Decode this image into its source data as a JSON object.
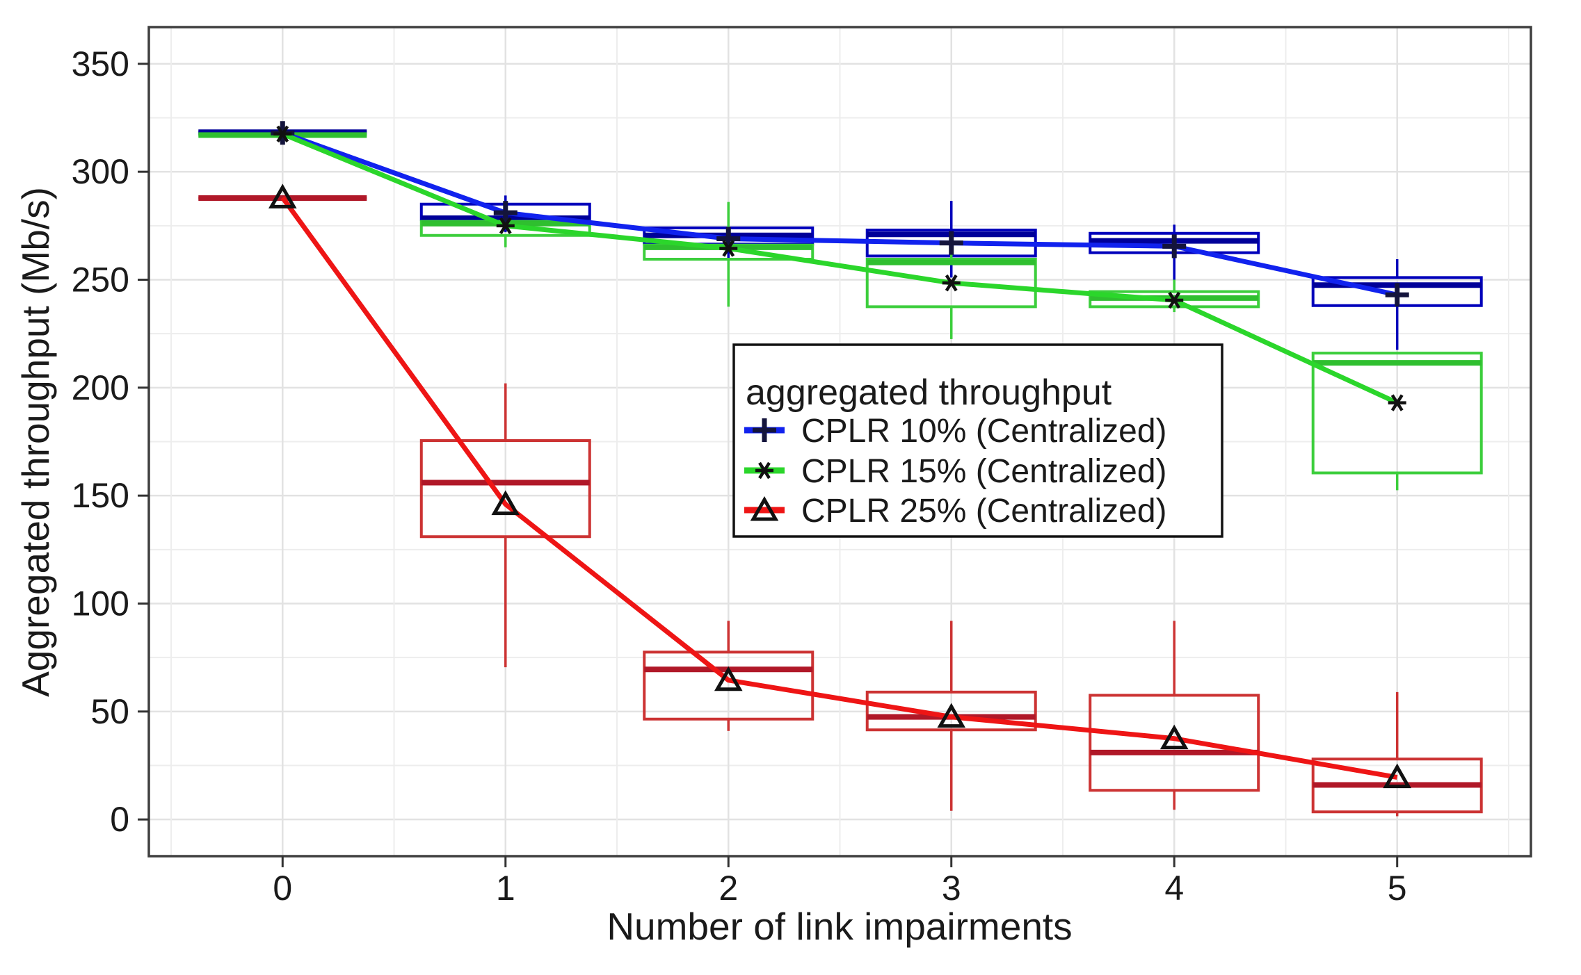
{
  "page": {
    "background": "#ffffff"
  },
  "chart_data": {
    "type": "boxplot+line",
    "title": "",
    "xlabel": "Number of link impairments",
    "ylabel": "Aggregated throughput (Mb/s)",
    "legend_title": "aggregated throughput",
    "legend_position": "inside-right-middle",
    "grid": "major and minor, light gray, on",
    "categories": [
      "0",
      "1",
      "2",
      "3",
      "4",
      "5"
    ],
    "yticks": [
      0,
      50,
      100,
      150,
      200,
      250,
      300,
      350
    ],
    "ytick_minor_step": 25,
    "ylim": [
      -17,
      367
    ],
    "series": [
      {
        "name": "CPLR 10% (Centralized)",
        "marker": "plus",
        "color": "#1122ee",
        "box_color": "#0000bb",
        "median_color": "#000099",
        "marker_color": "#14143c",
        "means": [
          318,
          281,
          269,
          267,
          265.5,
          243
        ],
        "boxes": [
          {
            "low": 318.3,
            "q1": 318.3,
            "med": 318.3,
            "q3": 318.3,
            "high": 318.3
          },
          {
            "low": 272,
            "q1": 278,
            "med": 278.5,
            "q3": 285,
            "high": 289
          },
          {
            "low": 257.5,
            "q1": 266.5,
            "med": 270.5,
            "q3": 274,
            "high": 277.5
          },
          {
            "low": 251,
            "q1": 261,
            "med": 271,
            "q3": 273,
            "high": 286.5
          },
          {
            "low": 250,
            "q1": 262.5,
            "med": 268,
            "q3": 271.5,
            "high": 275.5
          },
          {
            "low": 217.5,
            "q1": 238,
            "med": 247.5,
            "q3": 251,
            "high": 259.5
          }
        ]
      },
      {
        "name": "CPLR 15% (Centralized)",
        "marker": "star",
        "color": "#2bd62b",
        "box_color": "#3cce3c",
        "median_color": "#2fbf2f",
        "marker_color": "#111111",
        "means": [
          317.5,
          275,
          264.5,
          248.5,
          240.5,
          193
        ],
        "boxes": [
          {
            "low": 317,
            "q1": 317,
            "med": 317,
            "q3": 317,
            "high": 317
          },
          {
            "low": 265,
            "q1": 270.5,
            "med": 276,
            "q3": 277,
            "high": 281
          },
          {
            "low": 237.5,
            "q1": 259.5,
            "med": 265,
            "q3": 266,
            "high": 286
          },
          {
            "low": 222.5,
            "q1": 237.5,
            "med": 258,
            "q3": 259.5,
            "high": 262
          },
          {
            "low": 235,
            "q1": 237.5,
            "med": 241.5,
            "q3": 244.5,
            "high": 250
          },
          {
            "low": 152.5,
            "q1": 160.5,
            "med": 211.5,
            "q3": 216,
            "high": 216
          }
        ]
      },
      {
        "name": "CPLR 25% (Centralized)",
        "marker": "triangle-open",
        "color": "#ee1515",
        "box_color": "#cc3333",
        "median_color": "#b01828",
        "marker_color": "#111111",
        "means": [
          288,
          146,
          64.5,
          47.5,
          37.5,
          19.5
        ],
        "boxes": [
          {
            "low": 287.8,
            "q1": 287.8,
            "med": 287.8,
            "q3": 287.8,
            "high": 287.8
          },
          {
            "low": 70.5,
            "q1": 131,
            "med": 156,
            "q3": 175.5,
            "high": 202
          },
          {
            "low": 41,
            "q1": 46.5,
            "med": 69.5,
            "q3": 77.5,
            "high": 92
          },
          {
            "low": 4,
            "q1": 41.5,
            "med": 47.5,
            "q3": 59,
            "high": 92
          },
          {
            "low": 4.5,
            "q1": 13.5,
            "med": 31,
            "q3": 57.5,
            "high": 92
          },
          {
            "low": 1.5,
            "q1": 3.5,
            "med": 16,
            "q3": 28,
            "high": 59
          }
        ]
      }
    ]
  }
}
